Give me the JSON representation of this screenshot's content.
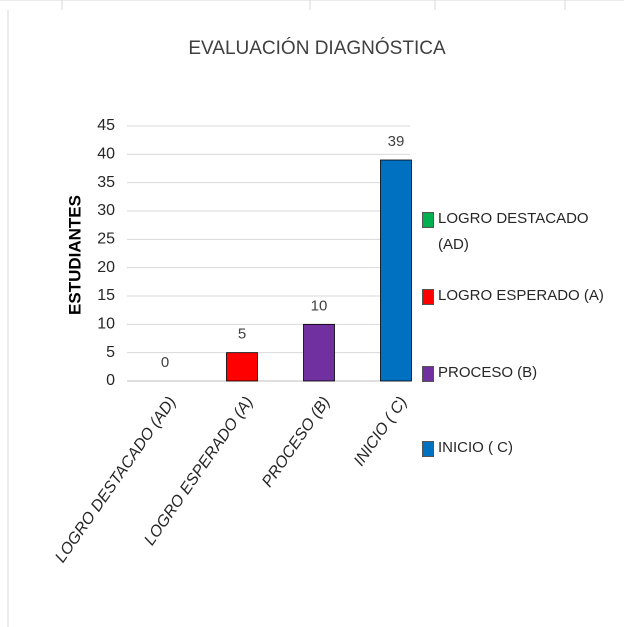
{
  "chart_data": {
    "type": "bar",
    "title": "EVALUACIÓN DIAGNÓSTICA",
    "y_label": "ESTUDIANTES",
    "categories": [
      "LOGRO DESTACADO (AD)",
      "LOGRO ESPERADO (A)",
      "PROCESO (B)",
      "INICIO ( C)"
    ],
    "values": [
      0,
      5,
      10,
      39
    ],
    "colors": [
      "#00b050",
      "#ff0000",
      "#7030a0",
      "#0070c0"
    ],
    "ylim": [
      0,
      45
    ],
    "yticks": [
      0,
      5,
      10,
      15,
      20,
      25,
      30,
      35,
      40,
      45
    ],
    "grid": true,
    "legend": "right"
  }
}
